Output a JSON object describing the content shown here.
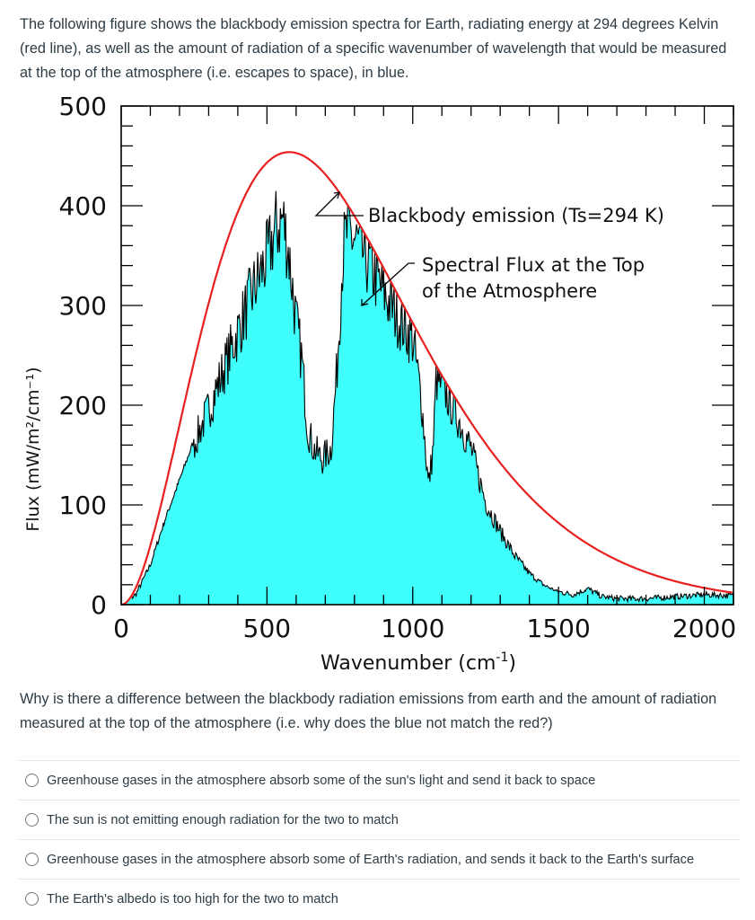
{
  "intro": "The following figure shows the blackbody emission spectra for Earth, radiating energy at 294 degrees Kelvin (red line), as well as the amount of radiation of a specific wavenumber of wavelength that would be measured at the top of the atmosphere (i.e. escapes to space), in blue.",
  "question": "Why is there a difference between the blackbody radiation emissions from earth and the amount of radiation measured at the top of the atmosphere (i.e. why does the blue not match the red?)",
  "options": [
    "Greenhouse gases in the atmosphere absorb some of the sun's light and send it back to space",
    "The sun is not emitting enough radiation for the two to match",
    "Greenhouse gases in the atmosphere absorb some of Earth's radiation, and sends it back to the Earth's surface",
    "The Earth's albedo is too high for the two to match"
  ],
  "chart_data": {
    "type": "area",
    "xlabel": "Wavenumber (cm",
    "xlabel_sup": "-1",
    "xlabel_end": ")",
    "ylabel": "Flux (mW/m²/cm⁻¹)",
    "xlim": [
      0,
      2100
    ],
    "ylim": [
      0,
      500
    ],
    "xticks": [
      "0",
      "500",
      "1000",
      "1500",
      "2000"
    ],
    "yticks": [
      "0",
      "100",
      "200",
      "300",
      "400",
      "500"
    ],
    "grid": false,
    "annotations": [
      "Blackbody emission (Ts=294 K)",
      "Spectral Flux at the Top",
      "of the Atmosphere"
    ],
    "colors": {
      "blackbody": "#e8201f",
      "toa_fill": "#3ffffd",
      "toa_line": "#000000"
    },
    "series": [
      {
        "key": "blackbody",
        "kind": "line",
        "temperature_K": 294,
        "x": [
          0,
          50,
          100,
          150,
          200,
          250,
          300,
          350,
          400,
          450,
          500,
          550,
          577,
          600,
          650,
          700,
          750,
          800,
          850,
          900,
          950,
          1000,
          1100,
          1200,
          1300,
          1400,
          1500,
          1600,
          1700,
          1800,
          1900,
          2000,
          2100
        ],
        "values": [
          0,
          11,
          45,
          94,
          150,
          208,
          264,
          315,
          358,
          397,
          426,
          449,
          456,
          455,
          447,
          430,
          405,
          376,
          345,
          314,
          282,
          282,
          229,
          181,
          140,
          106,
          79,
          58,
          42,
          30,
          21,
          15,
          11
        ]
      },
      {
        "key": "toa",
        "kind": "area",
        "x": [
          0,
          50,
          100,
          150,
          200,
          250,
          300,
          350,
          400,
          450,
          500,
          530,
          555,
          575,
          600,
          620,
          640,
          660,
          690,
          720,
          740,
          760,
          774,
          800,
          850,
          900,
          950,
          1000,
          1030,
          1054,
          1070,
          1080,
          1100,
          1150,
          1200,
          1250,
          1300,
          1350,
          1400,
          1450,
          1500,
          1550,
          1600,
          1650,
          1700,
          1800,
          1900,
          2000,
          2100
        ],
        "values": [
          0,
          10,
          40,
          85,
          125,
          165,
          200,
          240,
          280,
          320,
          355,
          385,
          396,
          360,
          290,
          250,
          180,
          160,
          149,
          160,
          240,
          360,
          381,
          375,
          350,
          320,
          295,
          272,
          210,
          122,
          160,
          231,
          225,
          195,
          160,
          105,
          75,
          50,
          32,
          20,
          13,
          10,
          16,
          8,
          6,
          6,
          8,
          10,
          9
        ]
      }
    ]
  }
}
